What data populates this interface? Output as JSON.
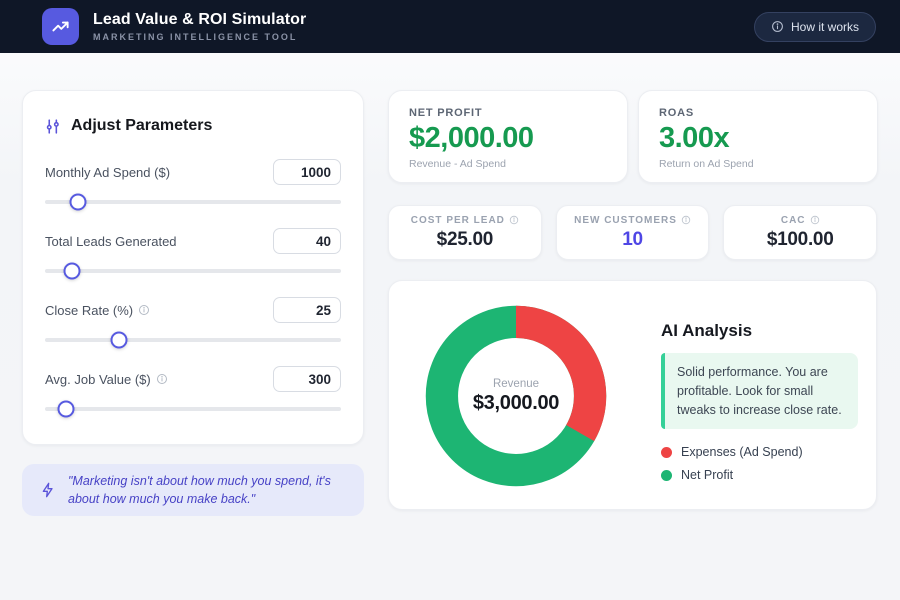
{
  "header": {
    "title": "Lead Value & ROI Simulator",
    "subtitle": "MARKETING INTELLIGENCE TOOL",
    "how_it_works_label": "How it works"
  },
  "parameters": {
    "heading": "Adjust Parameters",
    "items": [
      {
        "label": "Monthly Ad Spend ($)",
        "value": "1000",
        "percent": 11
      },
      {
        "label": "Total Leads Generated",
        "value": "40",
        "percent": 9
      },
      {
        "label": "Close Rate (%)",
        "value": "25",
        "percent": 25
      },
      {
        "label": "Avg. Job Value ($)",
        "value": "300",
        "percent": 7
      }
    ]
  },
  "quote": "\"Marketing isn't about how much you spend, it's about how much you make back.\"",
  "kpis": {
    "net_profit": {
      "label": "NET PROFIT",
      "value": "$2,000.00",
      "sub": "Revenue - Ad Spend"
    },
    "roas": {
      "label": "ROAS",
      "value": "3.00x",
      "sub": "Return on Ad Spend"
    }
  },
  "stats": [
    {
      "label": "COST PER LEAD",
      "value": "$25.00",
      "accent": false
    },
    {
      "label": "NEW CUSTOMERS",
      "value": "10",
      "accent": true
    },
    {
      "label": "CAC",
      "value": "$100.00",
      "accent": false
    }
  ],
  "analysis": {
    "heading": "AI Analysis",
    "text": "Solid performance. You are profitable. Look for small tweaks to increase close rate."
  },
  "chart_data": {
    "type": "pie",
    "title": "Revenue breakdown donut",
    "labels": [
      "Expenses (Ad Spend)",
      "Net Profit"
    ],
    "values": [
      1000,
      2000
    ],
    "colors": [
      "#ee4444",
      "#1db573"
    ],
    "center_label": "Revenue",
    "center_value": "$3,000.00",
    "legend_position": "right"
  },
  "colors": {
    "accent_indigo": "#575ae0",
    "positive_green": "#169a50",
    "expense_red": "#ee4444",
    "profit_green": "#1db573",
    "header_bg": "#0f1727"
  }
}
